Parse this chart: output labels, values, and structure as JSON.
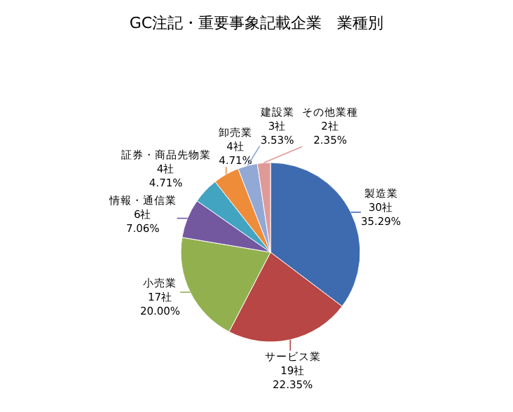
{
  "chart_data": {
    "type": "pie",
    "title": "GC注記・重要事象記載企業　業種別",
    "categories": [
      "製造業",
      "サービス業",
      "小売業",
      "情報・通信業",
      "証券・商品先物業",
      "卸売業",
      "建設業",
      "その他業種"
    ],
    "values": [
      30,
      19,
      17,
      6,
      4,
      4,
      3,
      2
    ],
    "value_labels": [
      "30社\n35.29%",
      "19社\n22.35%",
      "17社\n20.00%",
      "6社\n7.06%",
      "4社\n4.71%",
      "4社\n4.71%",
      "3社\n3.53%",
      "2社\n2.35%"
    ],
    "colors": [
      "#3e6bb0",
      "#b84644",
      "#93b04f",
      "#7358a0",
      "#43a4c2",
      "#ee8c3a",
      "#92a9d6",
      "#df9a98"
    ],
    "legend": false
  }
}
